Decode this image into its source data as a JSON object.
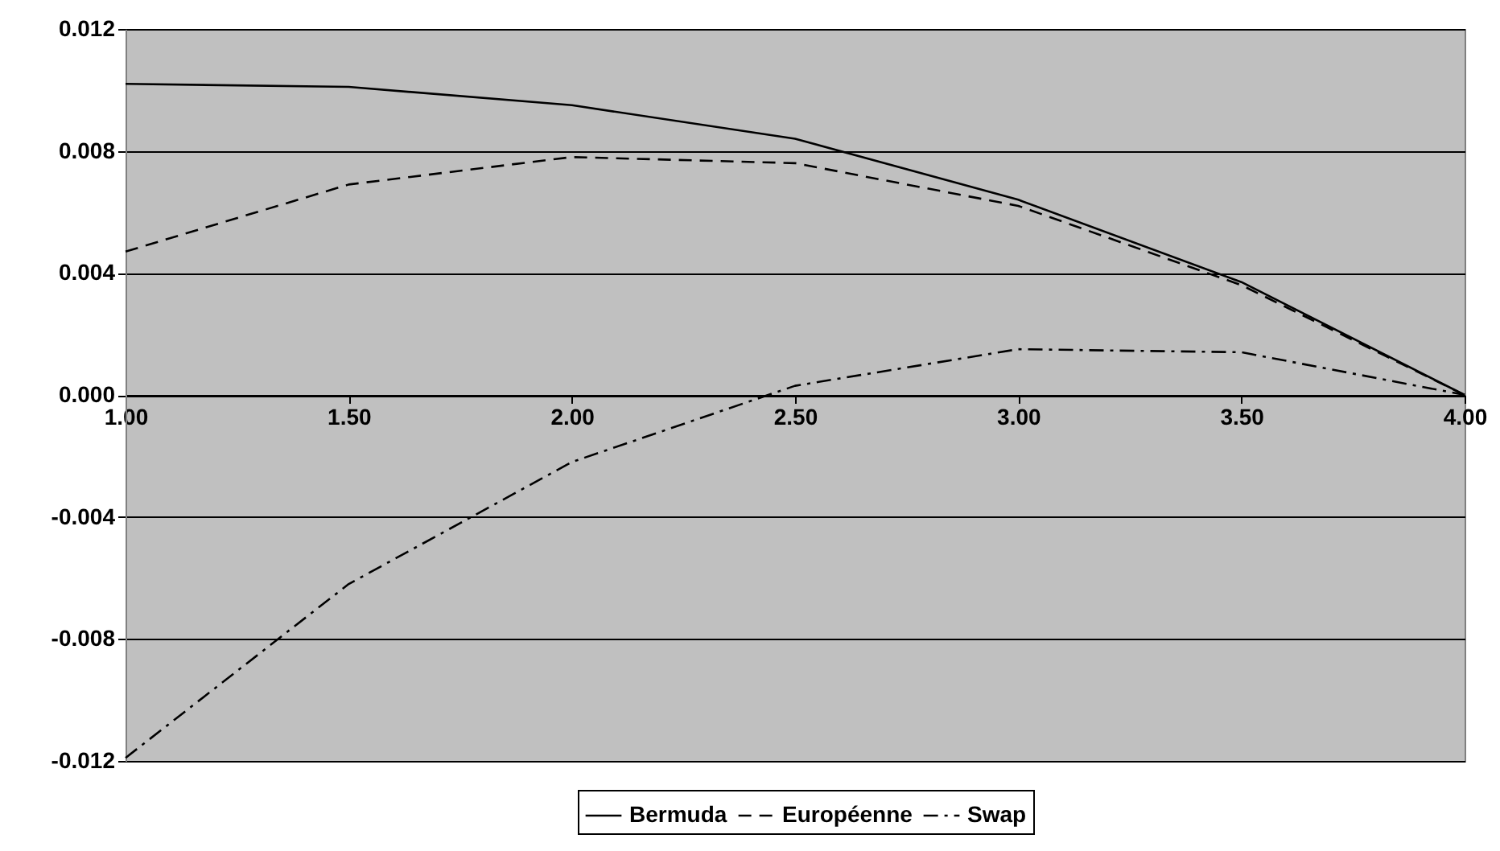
{
  "chart_data": {
    "type": "line",
    "x": [
      1,
      1.5,
      2,
      2.5,
      3,
      3.5,
      4
    ],
    "series": [
      {
        "name": "Bermuda",
        "color": "#000000",
        "line_style": "solid",
        "values": [
          0.0102,
          0.0101,
          0.0095,
          0.0084,
          0.0064,
          0.0037,
          0
        ]
      },
      {
        "name": "Européenne",
        "color": "#000000",
        "line_style": "dashed",
        "values": [
          0.0047,
          0.0069,
          0.0078,
          0.0076,
          0.0062,
          0.0036,
          0
        ]
      },
      {
        "name": "Swap",
        "color": "#000000",
        "line_style": "dashdot",
        "values": [
          -0.0119,
          -0.0062,
          -0.0022,
          0.0003,
          0.0015,
          0.0014,
          0
        ]
      }
    ],
    "xlim": [
      1,
      4
    ],
    "xticks": [
      {
        "value": 1,
        "label": "1.00"
      },
      {
        "value": 1.5,
        "label": "1.50"
      },
      {
        "value": 2,
        "label": "2.00"
      },
      {
        "value": 2.5,
        "label": "2.50"
      },
      {
        "value": 3,
        "label": "3.00"
      },
      {
        "value": 3.5,
        "label": "3.50"
      },
      {
        "value": 4,
        "label": "4.00"
      }
    ],
    "ylim": [
      -0.012,
      0.012
    ],
    "yticks": [
      {
        "value": -0.012,
        "label": "-0.012"
      },
      {
        "value": -0.008,
        "label": "-0.008"
      },
      {
        "value": -0.004,
        "label": "-0.004"
      },
      {
        "value": 0,
        "label": "0.000"
      },
      {
        "value": 0.004,
        "label": "0.004"
      },
      {
        "value": 0.008,
        "label": "0.008"
      },
      {
        "value": 0.012,
        "label": "0.012"
      }
    ],
    "grid": "y",
    "legend": "bottom",
    "marker": "none"
  }
}
